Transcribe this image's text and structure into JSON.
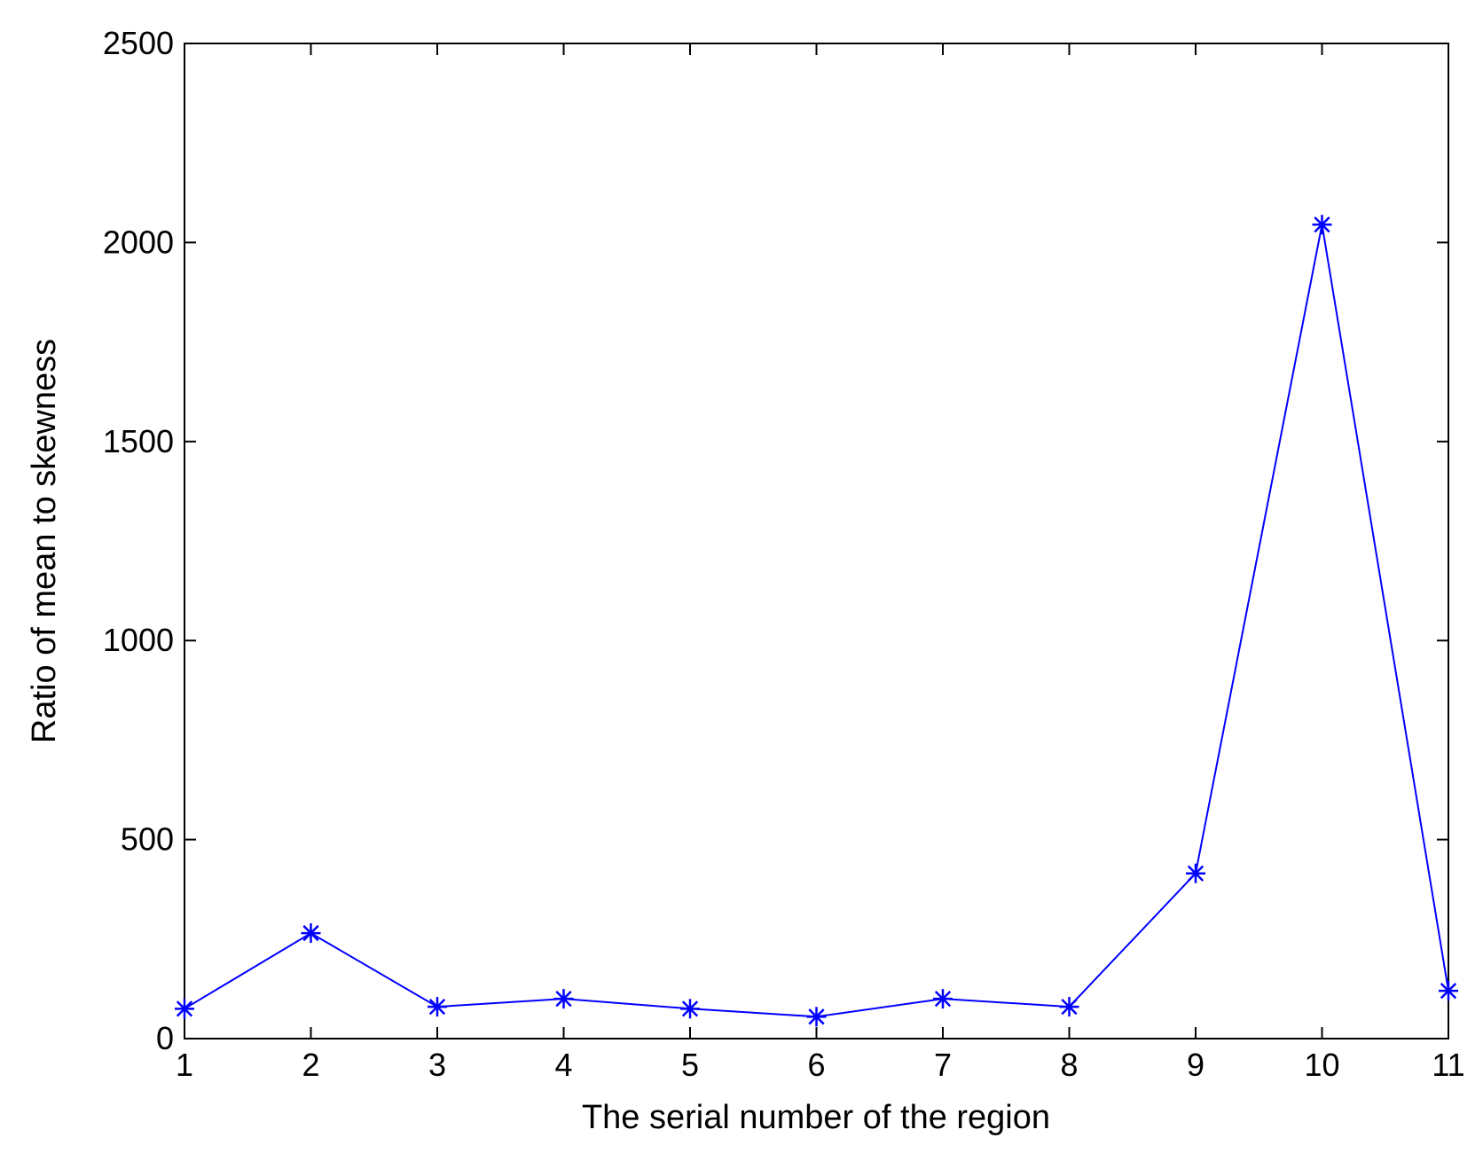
{
  "chart_data": {
    "type": "line",
    "xlabel": "The serial number of the region",
    "ylabel": "Ratio of mean to skewness",
    "xlim": [
      1,
      11
    ],
    "ylim": [
      0,
      2500
    ],
    "x_ticks": [
      1,
      2,
      3,
      4,
      5,
      6,
      7,
      8,
      9,
      10,
      11
    ],
    "y_ticks": [
      0,
      500,
      1000,
      1500,
      2000,
      2500
    ],
    "grid": false,
    "legend": false,
    "series": [
      {
        "color": "#0000ff",
        "marker": "asterisk",
        "x": [
          1,
          2,
          3,
          4,
          5,
          6,
          7,
          8,
          9,
          10,
          11
        ],
        "y": [
          75,
          265,
          80,
          100,
          75,
          55,
          100,
          80,
          415,
          2045,
          120
        ]
      }
    ]
  }
}
